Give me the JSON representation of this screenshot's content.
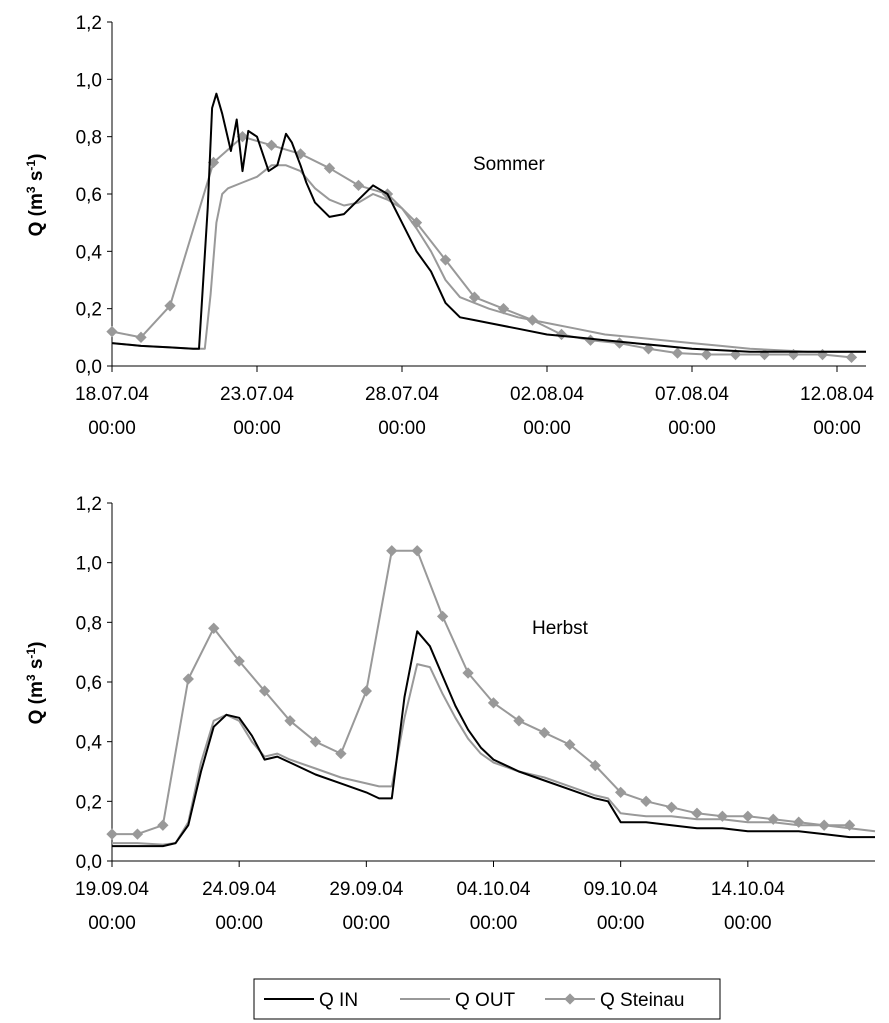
{
  "colors": {
    "q_in": "#000000",
    "q_out": "#999999",
    "q_steinau": "#999999",
    "marker": "#999999"
  },
  "legend": {
    "placement": "bottom-center",
    "entries": [
      "Q IN",
      "Q OUT",
      "Q Steinau"
    ]
  },
  "chart_data": [
    {
      "type": "line",
      "annotation": "Sommer",
      "ylabel": {
        "main": "Q (m",
        "sup1": "3",
        "mid": " s",
        "sup2": "-1",
        "end": ")"
      },
      "ylim": [
        0,
        1.2
      ],
      "yticks": [
        0,
        0.2,
        0.4,
        0.6,
        0.8,
        1.0,
        1.2
      ],
      "ytick_labels": [
        "0,0",
        "0,2",
        "0,4",
        "0,6",
        "0,8",
        "1,0",
        "1,2"
      ],
      "xlim_days": [
        0,
        26
      ],
      "xticks": [
        0,
        5,
        10,
        15,
        20,
        25
      ],
      "xtick_labels": [
        [
          "18.07.04",
          "00:00"
        ],
        [
          "23.07.04",
          "00:00"
        ],
        [
          "28.07.04",
          "00:00"
        ],
        [
          "02.08.04",
          "00:00"
        ],
        [
          "07.08.04",
          "00:00"
        ],
        [
          "12.08.04",
          "00:00"
        ]
      ],
      "series": [
        {
          "name": "Q IN",
          "x": [
            0,
            1,
            2,
            2.8,
            3.0,
            3.3,
            3.45,
            3.6,
            3.8,
            4.1,
            4.3,
            4.5,
            4.7,
            5.0,
            5.4,
            5.7,
            6.0,
            6.2,
            6.5,
            6.7,
            7.0,
            7.5,
            8.0,
            8.5,
            9.0,
            9.5,
            10.0,
            10.5,
            11.0,
            11.5,
            12.0,
            12.5,
            13.0,
            14,
            15,
            16,
            17,
            18,
            19,
            20,
            21,
            22,
            23,
            24,
            25,
            26
          ],
          "y": [
            0.08,
            0.07,
            0.065,
            0.06,
            0.06,
            0.55,
            0.9,
            0.95,
            0.88,
            0.75,
            0.86,
            0.68,
            0.82,
            0.8,
            0.68,
            0.7,
            0.81,
            0.78,
            0.7,
            0.64,
            0.57,
            0.52,
            0.53,
            0.58,
            0.63,
            0.6,
            0.5,
            0.4,
            0.33,
            0.22,
            0.17,
            0.16,
            0.15,
            0.13,
            0.11,
            0.1,
            0.09,
            0.08,
            0.07,
            0.06,
            0.055,
            0.05,
            0.05,
            0.05,
            0.05,
            0.05
          ]
        },
        {
          "name": "Q OUT",
          "x": [
            0,
            1,
            2,
            2.8,
            3.2,
            3.4,
            3.6,
            3.8,
            4.0,
            4.5,
            5.0,
            5.5,
            6.0,
            6.5,
            7.0,
            7.5,
            8.0,
            8.5,
            9.0,
            9.5,
            10.0,
            10.5,
            11.0,
            11.5,
            12.0,
            13.0,
            14,
            15,
            16,
            17,
            18,
            19,
            20,
            21,
            22,
            23,
            24,
            25,
            26
          ],
          "y": [
            0.08,
            0.07,
            0.065,
            0.06,
            0.06,
            0.25,
            0.5,
            0.6,
            0.62,
            0.64,
            0.66,
            0.7,
            0.7,
            0.68,
            0.62,
            0.58,
            0.56,
            0.57,
            0.6,
            0.58,
            0.55,
            0.48,
            0.4,
            0.3,
            0.24,
            0.2,
            0.17,
            0.15,
            0.13,
            0.11,
            0.1,
            0.09,
            0.08,
            0.07,
            0.06,
            0.055,
            0.05,
            0.05,
            0.05
          ]
        },
        {
          "name": "Q Steinau",
          "x": [
            0,
            1,
            2,
            3.5,
            4.5,
            5.5,
            6.5,
            7.5,
            8.5,
            9.5,
            10.5,
            11.5,
            12.5,
            13.5,
            14.5,
            15.5,
            16.5,
            17.5,
            18.5,
            19.5,
            20.5,
            21.5,
            22.5,
            23.5,
            24.5,
            25.5
          ],
          "y": [
            0.12,
            0.1,
            0.21,
            0.71,
            0.8,
            0.77,
            0.74,
            0.69,
            0.63,
            0.6,
            0.5,
            0.37,
            0.24,
            0.2,
            0.16,
            0.11,
            0.09,
            0.08,
            0.06,
            0.045,
            0.04,
            0.04,
            0.04,
            0.04,
            0.04,
            0.03
          ]
        }
      ]
    },
    {
      "type": "line",
      "annotation": "Herbst",
      "ylabel": {
        "main": "Q (m",
        "sup1": "3",
        "mid": " s",
        "sup2": "-1",
        "end": ")"
      },
      "ylim": [
        0,
        1.2
      ],
      "yticks": [
        0,
        0.2,
        0.4,
        0.6,
        0.8,
        1.0,
        1.2
      ],
      "ytick_labels": [
        "0,0",
        "0,2",
        "0,4",
        "0,6",
        "0,8",
        "1,0",
        "1,2"
      ],
      "xlim_days": [
        0,
        30
      ],
      "xticks": [
        0,
        5,
        10,
        15,
        20,
        25
      ],
      "xtick_labels": [
        [
          "19.09.04",
          "00:00"
        ],
        [
          "24.09.04",
          "00:00"
        ],
        [
          "29.09.04",
          "00:00"
        ],
        [
          "04.10.04",
          "00:00"
        ],
        [
          "09.10.04",
          "00:00"
        ],
        [
          "14.10.04",
          "00:00"
        ]
      ],
      "series": [
        {
          "name": "Q IN",
          "x": [
            0,
            1,
            2,
            2.5,
            3.0,
            3.5,
            4.0,
            4.5,
            5.0,
            5.5,
            6.0,
            6.5,
            7.0,
            8.0,
            9.0,
            10.0,
            10.5,
            10.7,
            11.0,
            11.5,
            12.0,
            12.5,
            13.0,
            13.5,
            14.0,
            14.5,
            15.0,
            16.0,
            17.0,
            18.0,
            19.0,
            19.5,
            20.0,
            21.0,
            22.0,
            23.0,
            24.0,
            25.0,
            26.0,
            27.0,
            28.0,
            29.0,
            30.0
          ],
          "y": [
            0.05,
            0.05,
            0.05,
            0.06,
            0.12,
            0.3,
            0.45,
            0.49,
            0.48,
            0.42,
            0.34,
            0.35,
            0.33,
            0.29,
            0.26,
            0.23,
            0.21,
            0.21,
            0.21,
            0.55,
            0.77,
            0.72,
            0.62,
            0.52,
            0.44,
            0.38,
            0.34,
            0.3,
            0.27,
            0.24,
            0.21,
            0.2,
            0.13,
            0.13,
            0.12,
            0.11,
            0.11,
            0.1,
            0.1,
            0.1,
            0.09,
            0.08,
            0.08
          ]
        },
        {
          "name": "Q OUT",
          "x": [
            0,
            1,
            2,
            2.5,
            3.0,
            3.5,
            4.0,
            4.5,
            5.0,
            5.5,
            6.0,
            6.5,
            7.0,
            8.0,
            9.0,
            10.0,
            10.5,
            11.0,
            11.5,
            12.0,
            12.5,
            13.0,
            13.5,
            14.0,
            14.5,
            15.0,
            16.0,
            17.0,
            18.0,
            19.0,
            19.5,
            20.0,
            21.0,
            22.0,
            23.0,
            24.0,
            25.0,
            26.0,
            27.0,
            28.0,
            29.0,
            30.0
          ],
          "y": [
            0.06,
            0.06,
            0.055,
            0.06,
            0.13,
            0.33,
            0.47,
            0.49,
            0.47,
            0.4,
            0.35,
            0.36,
            0.34,
            0.31,
            0.28,
            0.26,
            0.25,
            0.25,
            0.48,
            0.66,
            0.65,
            0.56,
            0.48,
            0.41,
            0.36,
            0.33,
            0.3,
            0.28,
            0.25,
            0.22,
            0.21,
            0.16,
            0.15,
            0.15,
            0.14,
            0.14,
            0.13,
            0.13,
            0.12,
            0.12,
            0.11,
            0.1
          ]
        },
        {
          "name": "Q Steinau",
          "x": [
            0,
            1,
            2,
            3,
            4,
            5,
            6,
            7,
            8,
            9,
            10,
            11,
            12,
            13,
            14,
            15,
            16,
            17,
            18,
            19,
            20,
            21,
            22,
            23,
            24,
            25,
            26,
            27,
            28,
            29
          ],
          "y": [
            0.09,
            0.09,
            0.12,
            0.61,
            0.78,
            0.67,
            0.57,
            0.47,
            0.4,
            0.36,
            0.57,
            1.04,
            1.04,
            0.82,
            0.63,
            0.53,
            0.47,
            0.43,
            0.39,
            0.32,
            0.23,
            0.2,
            0.18,
            0.16,
            0.15,
            0.15,
            0.14,
            0.13,
            0.12,
            0.12
          ]
        }
      ]
    }
  ]
}
